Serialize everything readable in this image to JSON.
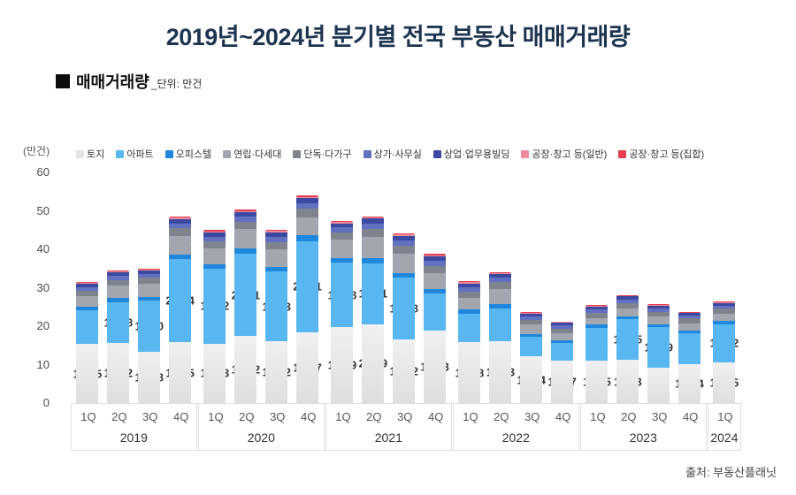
{
  "header": {
    "title": "2019년~2024년 분기별 전국 부동산 매매거래량",
    "series_label": "매매거래량",
    "unit_note": "_단위: 만건"
  },
  "footer": {
    "source": "출처: 부동산플래닛"
  },
  "chart_data": {
    "type": "bar",
    "subtype": "stacked",
    "title": "2019년~2024년 분기별 전국 부동산 매매거래량",
    "unit_label": "(만건)",
    "ylim": [
      0,
      60
    ],
    "yticks": [
      60,
      50,
      40,
      30,
      20,
      10,
      0
    ],
    "grid": false,
    "legend_position": "top",
    "series": [
      {
        "name": "토지",
        "color": "#e4e4e6",
        "labeled": true
      },
      {
        "name": "아파트",
        "color": "#58b7f0",
        "labeled": true
      },
      {
        "name": "오피스텔",
        "color": "#1f87dd",
        "labeled": false
      },
      {
        "name": "연립·다세대",
        "color": "#a2a6ae",
        "labeled": true
      },
      {
        "name": "단독·다가구",
        "color": "#7e838d",
        "labeled": false
      },
      {
        "name": "상가·사무실",
        "color": "#6270c2",
        "labeled": false
      },
      {
        "name": "상업·업무용빌딩",
        "color": "#3b4aa0",
        "labeled": false
      },
      {
        "name": "공장·창고 등(일반)",
        "color": "#f28a9e",
        "labeled": false
      },
      {
        "name": "공장·창고 등(집합)",
        "color": "#e4404d",
        "labeled": false
      }
    ],
    "note": "values arrays align with series order; only 토지/아파트/연립·다세대 have printed data labels in the image, other segment values are visual estimates",
    "groups": [
      {
        "year": "2019",
        "quarters": [
          "1Q",
          "2Q",
          "3Q",
          "4Q"
        ],
        "values": [
          [
            15.35,
            8.78,
            0.9,
            2.81,
            1.4,
            0.9,
            0.9,
            0.2,
            0.2
          ],
          [
            15.62,
            10.68,
            1.0,
            3.27,
            1.5,
            1.0,
            1.0,
            0.25,
            0.25
          ],
          [
            13.38,
            13.3,
            1.0,
            3.38,
            1.5,
            1.0,
            1.0,
            0.25,
            0.25
          ],
          [
            15.75,
            21.64,
            1.3,
            4.74,
            2.0,
            1.3,
            1.2,
            0.3,
            0.3
          ]
        ]
      },
      {
        "year": "2020",
        "quarters": [
          "1Q",
          "2Q",
          "3Q",
          "4Q"
        ],
        "values": [
          [
            15.43,
            19.52,
            1.2,
            4.13,
            1.8,
            1.2,
            1.1,
            0.3,
            0.3
          ],
          [
            17.42,
            21.41,
            1.3,
            5.06,
            2.0,
            1.3,
            1.2,
            0.3,
            0.3
          ],
          [
            16.12,
            18.03,
            1.3,
            4.49,
            2.0,
            1.3,
            1.2,
            0.3,
            0.3
          ],
          [
            18.37,
            23.81,
            1.4,
            4.81,
            2.2,
            1.4,
            1.3,
            0.35,
            0.35
          ]
        ]
      },
      {
        "year": "2021",
        "quarters": [
          "1Q",
          "2Q",
          "3Q",
          "4Q"
        ],
        "values": [
          [
            19.79,
            16.68,
            1.2,
            4.9,
            1.9,
            1.2,
            1.1,
            0.3,
            0.3
          ],
          [
            20.49,
            15.81,
            1.3,
            5.62,
            2.1,
            1.4,
            1.3,
            0.3,
            0.3
          ],
          [
            16.52,
            16.08,
            1.3,
            4.87,
            2.1,
            1.4,
            1.3,
            0.3,
            0.3
          ],
          [
            18.93,
            9.57,
            1.2,
            4.06,
            1.9,
            1.3,
            1.2,
            0.3,
            0.3
          ]
        ]
      },
      {
        "year": "2022",
        "quarters": [
          "1Q",
          "2Q",
          "3Q",
          "4Q"
        ],
        "values": [
          [
            15.78,
            7.4,
            1.1,
            3.06,
            1.7,
            1.1,
            1.0,
            0.25,
            0.25
          ],
          [
            16.03,
            8.6,
            1.1,
            3.96,
            1.7,
            1.2,
            1.0,
            0.25,
            0.25
          ],
          [
            12.14,
            5.0,
            0.8,
            2.46,
            1.3,
            0.8,
            0.7,
            0.2,
            0.2
          ],
          [
            10.97,
            4.7,
            0.75,
            1.79,
            1.2,
            0.75,
            0.7,
            0.2,
            0.2
          ]
        ]
      },
      {
        "year": "2023",
        "quarters": [
          "1Q",
          "2Q",
          "3Q",
          "4Q"
        ],
        "values": [
          [
            11.05,
            8.51,
            0.85,
            1.67,
            1.4,
            0.85,
            0.8,
            0.2,
            0.2
          ],
          [
            11.23,
            10.55,
            0.85,
            2.06,
            1.4,
            0.85,
            0.8,
            0.2,
            0.2
          ],
          [
            9.28,
            10.49,
            0.8,
            1.92,
            1.3,
            0.8,
            0.75,
            0.2,
            0.2
          ],
          [
            10.14,
            8.13,
            0.7,
            1.84,
            1.2,
            0.7,
            0.65,
            0.18,
            0.18
          ]
        ]
      },
      {
        "year": "2024",
        "quarters": [
          "1Q"
        ],
        "values": [
          [
            10.55,
            10.02,
            0.8,
            1.86,
            1.3,
            0.8,
            0.75,
            0.2,
            0.2
          ]
        ]
      }
    ]
  }
}
